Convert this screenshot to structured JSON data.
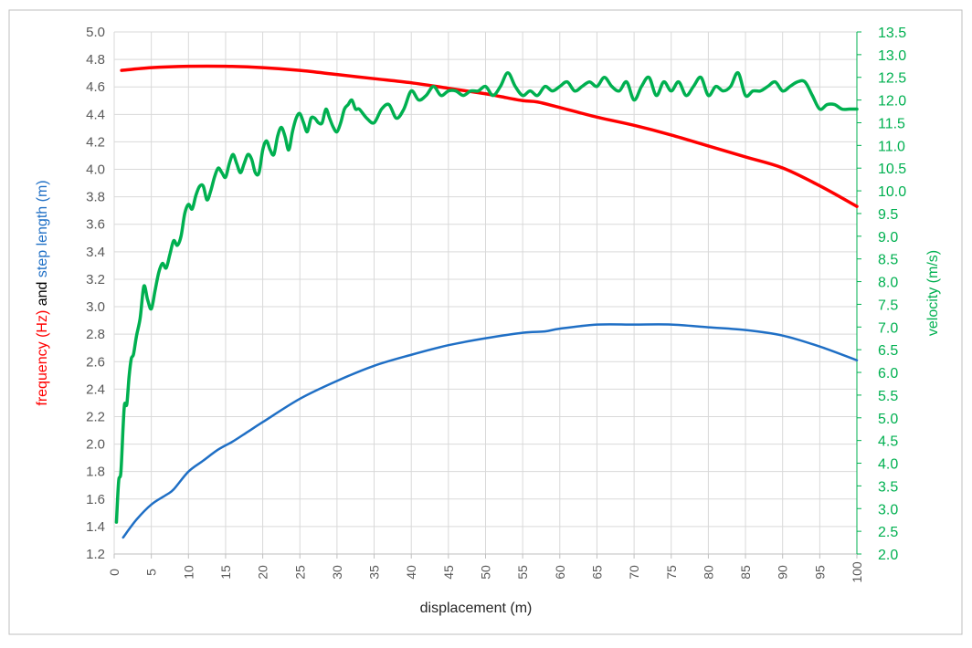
{
  "chart_data": {
    "type": "line",
    "xlabel": "displacement (m)",
    "y_left_label_parts": [
      {
        "text": "frequency (Hz)",
        "color": "#ff0000"
      },
      {
        "text": " and ",
        "color": "#000000"
      },
      {
        "text": "step length (m)",
        "color": "#1f6fc5"
      }
    ],
    "y_right_label": "velocity (m/s)",
    "xlim": [
      0,
      100
    ],
    "ylim_left": [
      1.2,
      5.0
    ],
    "ylim_right": [
      2.0,
      13.5
    ],
    "x_ticks": [
      0,
      5,
      10,
      15,
      20,
      25,
      30,
      35,
      40,
      45,
      50,
      55,
      60,
      65,
      70,
      75,
      80,
      85,
      90,
      95,
      100
    ],
    "y_left_ticks": [
      "1.2",
      "1.4",
      "1.6",
      "1.8",
      "2.0",
      "2.2",
      "2.4",
      "2.6",
      "2.8",
      "3.0",
      "3.2",
      "3.4",
      "3.6",
      "3.8",
      "4.0",
      "4.2",
      "4.4",
      "4.6",
      "4.8",
      "5.0"
    ],
    "y_right_ticks": [
      "2.0",
      "2.5",
      "3.0",
      "3.5",
      "4.0",
      "4.5",
      "5.0",
      "5.5",
      "6.0",
      "6.5",
      "7.0",
      "7.5",
      "8.0",
      "8.5",
      "9.0",
      "9.5",
      "10.0",
      "10.5",
      "11.0",
      "11.5",
      "12.0",
      "12.5",
      "13.0",
      "13.5"
    ],
    "grid": true,
    "colors": {
      "frequency": "#ff0000",
      "step_length": "#1f6fc5",
      "velocity": "#00b050",
      "axis_right_text": "#00b050"
    },
    "series": [
      {
        "axis": "left",
        "color": "#ff0000",
        "x": [
          1,
          5,
          10,
          15,
          20,
          25,
          30,
          35,
          40,
          45,
          50,
          52,
          55,
          57,
          60,
          65,
          70,
          75,
          80,
          85,
          90,
          95,
          100
        ],
        "values": [
          4.72,
          4.74,
          4.75,
          4.75,
          4.74,
          4.72,
          4.69,
          4.66,
          4.63,
          4.59,
          4.55,
          4.53,
          4.5,
          4.49,
          4.45,
          4.38,
          4.32,
          4.25,
          4.17,
          4.09,
          4.01,
          3.88,
          3.73
        ]
      },
      {
        "axis": "left",
        "color": "#1f6fc5",
        "x": [
          1.2,
          3,
          5,
          7,
          8,
          10,
          12,
          14,
          16,
          18,
          20,
          25,
          30,
          35,
          40,
          45,
          50,
          55,
          58,
          60,
          65,
          70,
          75,
          80,
          85,
          90,
          95,
          100
        ],
        "values": [
          1.32,
          1.45,
          1.56,
          1.63,
          1.67,
          1.8,
          1.88,
          1.96,
          2.02,
          2.09,
          2.16,
          2.33,
          2.46,
          2.57,
          2.65,
          2.72,
          2.77,
          2.81,
          2.82,
          2.84,
          2.87,
          2.87,
          2.87,
          2.85,
          2.83,
          2.79,
          2.71,
          2.61
        ]
      },
      {
        "axis": "right",
        "color": "#00b050",
        "x": [
          0.3,
          0.6,
          0.9,
          1.2,
          1.4,
          1.7,
          2.0,
          2.3,
          2.6,
          3.0,
          3.5,
          4.0,
          4.5,
          5.0,
          5.5,
          6.0,
          6.5,
          7.0,
          7.5,
          8.0,
          8.5,
          9.0,
          9.5,
          10.0,
          10.5,
          11.0,
          11.5,
          12.0,
          12.5,
          13.0,
          13.5,
          14.0,
          14.5,
          15.0,
          15.5,
          16.0,
          16.5,
          17.0,
          17.5,
          18.0,
          18.5,
          19.0,
          19.5,
          20.0,
          20.5,
          21.0,
          21.5,
          22.0,
          22.5,
          23.0,
          23.5,
          24.0,
          24.5,
          25.0,
          25.5,
          26.0,
          26.5,
          27.0,
          27.5,
          28.0,
          28.5,
          29.0,
          29.5,
          30.0,
          30.5,
          31.0,
          31.5,
          32.0,
          32.5,
          33.0,
          34.0,
          35.0,
          36.0,
          37.0,
          38.0,
          39.0,
          40.0,
          41.0,
          42.0,
          43.0,
          44.0,
          45.0,
          46.0,
          47.0,
          48.0,
          49.0,
          50.0,
          51.0,
          52.0,
          53.0,
          54.0,
          55.0,
          56.0,
          57.0,
          58.0,
          59.0,
          60.0,
          61.0,
          62.0,
          63.0,
          64.0,
          65.0,
          66.0,
          67.0,
          68.0,
          69.0,
          70.0,
          71.0,
          72.0,
          73.0,
          74.0,
          75.0,
          76.0,
          77.0,
          78.0,
          79.0,
          80.0,
          81.0,
          82.0,
          83.0,
          84.0,
          85.0,
          86.0,
          87.0,
          88.0,
          89.0,
          90.0,
          91.0,
          92.0,
          93.0,
          94.0,
          95.0,
          96.0,
          97.0,
          98.0,
          99.0,
          100.0
        ],
        "values": [
          2.7,
          3.6,
          3.8,
          4.8,
          5.3,
          5.3,
          5.9,
          6.3,
          6.4,
          6.8,
          7.2,
          7.9,
          7.6,
          7.4,
          7.8,
          8.2,
          8.4,
          8.3,
          8.6,
          8.9,
          8.8,
          9.0,
          9.5,
          9.7,
          9.6,
          9.9,
          10.1,
          10.1,
          9.8,
          10.0,
          10.3,
          10.5,
          10.4,
          10.3,
          10.6,
          10.8,
          10.6,
          10.4,
          10.6,
          10.8,
          10.7,
          10.4,
          10.4,
          10.9,
          11.1,
          10.9,
          10.8,
          11.2,
          11.4,
          11.2,
          10.9,
          11.3,
          11.6,
          11.7,
          11.5,
          11.3,
          11.6,
          11.6,
          11.5,
          11.5,
          11.8,
          11.6,
          11.4,
          11.3,
          11.5,
          11.8,
          11.9,
          12.0,
          11.8,
          11.8,
          11.6,
          11.5,
          11.8,
          11.9,
          11.6,
          11.8,
          12.2,
          12.0,
          12.1,
          12.3,
          12.1,
          12.2,
          12.2,
          12.1,
          12.2,
          12.2,
          12.3,
          12.1,
          12.3,
          12.6,
          12.3,
          12.1,
          12.2,
          12.1,
          12.3,
          12.2,
          12.3,
          12.4,
          12.2,
          12.3,
          12.4,
          12.3,
          12.5,
          12.3,
          12.2,
          12.4,
          12.0,
          12.3,
          12.5,
          12.1,
          12.4,
          12.2,
          12.4,
          12.1,
          12.3,
          12.5,
          12.1,
          12.3,
          12.2,
          12.3,
          12.6,
          12.1,
          12.2,
          12.2,
          12.3,
          12.4,
          12.2,
          12.3,
          12.4,
          12.4,
          12.1,
          11.8,
          11.9,
          11.9,
          11.8,
          11.8,
          11.8
        ]
      }
    ]
  }
}
